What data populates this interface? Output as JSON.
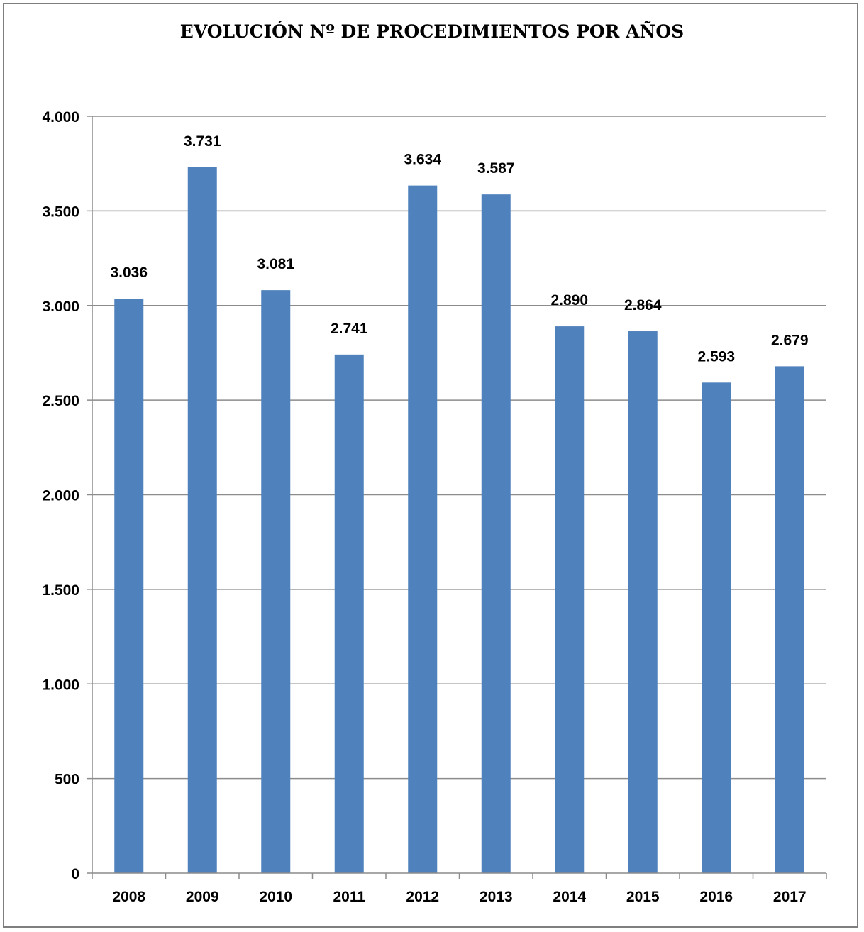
{
  "chart_data": {
    "type": "bar",
    "title": "EVOLUCIÓN Nº DE PROCEDIMIENTOS POR AÑOS",
    "xlabel": "",
    "ylabel": "",
    "categories": [
      "2008",
      "2009",
      "2010",
      "2011",
      "2012",
      "2013",
      "2014",
      "2015",
      "2016",
      "2017"
    ],
    "values": [
      3036,
      3731,
      3081,
      2741,
      3634,
      3587,
      2890,
      2864,
      2593,
      2679
    ],
    "value_labels": [
      "3.036",
      "3.731",
      "3.081",
      "2.741",
      "3.634",
      "3.587",
      "2.890",
      "2.864",
      "2.593",
      "2.679"
    ],
    "ylim": [
      0,
      4000
    ],
    "y_ticks": [
      0,
      500,
      1000,
      1500,
      2000,
      2500,
      3000,
      3500,
      4000
    ],
    "y_tick_labels": [
      "0",
      "500",
      "1.000",
      "1.500",
      "2.000",
      "2.500",
      "3.000",
      "3.500",
      "4.000"
    ],
    "grid": true,
    "legend": "none",
    "bar_color": "#4f81bd",
    "grid_color": "#8c8c8c"
  }
}
